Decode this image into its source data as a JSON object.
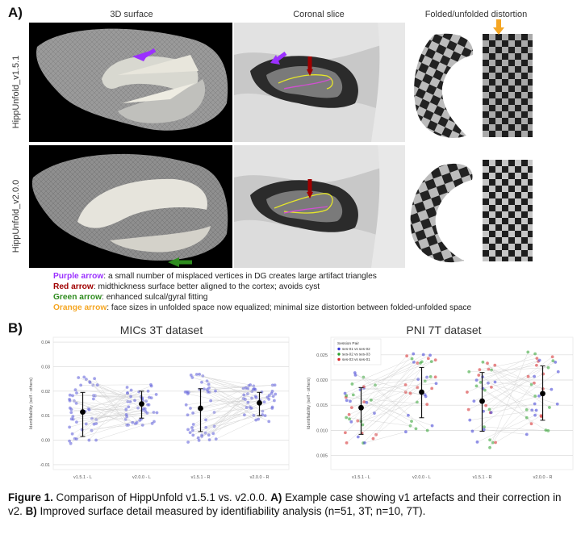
{
  "panel_a": {
    "label": "A)",
    "columns": [
      "3D surface",
      "Coronal slice",
      "Folded/unfolded distortion"
    ],
    "rows": [
      "HippUnfold_v1.5.1",
      "HippUnfold_v2.0.0"
    ]
  },
  "legend": [
    {
      "name": "Purple arrow",
      "text": ": a small number of misplaced vertices in DG creates large artifact triangles",
      "color": "#9b30ff"
    },
    {
      "name": "Red arrow",
      "text": ": midthickness surface better aligned to the cortex; avoids cyst",
      "color": "#a00000"
    },
    {
      "name": "Green arrow",
      "text": ": enhanced sulcal/gyral fitting",
      "color": "#2e8b1e"
    },
    {
      "name": "Orange arrow",
      "text": ": face sizes in unfolded space now equalized; minimal size distortion between folded-unfolded space",
      "color": "#f5a623"
    }
  ],
  "panel_b": {
    "label": "B)"
  },
  "chart_data": [
    {
      "type": "scatter",
      "title": "MICs 3T dataset",
      "ylabel": "Identifiability (self - others)",
      "categories": [
        "v1.5.1 - L",
        "v2.0.0 - L",
        "v1.5.1 - R",
        "v2.0.0 - R"
      ],
      "yticks": [
        "-0.01",
        "0.00",
        "0.01",
        "0.02",
        "0.03",
        "0.04"
      ],
      "ylim": [
        -0.012,
        0.042
      ],
      "means": [
        0.0115,
        0.0148,
        0.013,
        0.0152
      ],
      "err_low": [
        0.0015,
        0.009,
        0.0035,
        0.01
      ],
      "err_high": [
        0.0195,
        0.02,
        0.021,
        0.0195
      ],
      "point_color": "#5b5bdb",
      "grid": true
    },
    {
      "type": "scatter",
      "title": "PNI 7T dataset",
      "ylabel": "Identifiability (self - others)",
      "categories": [
        "v1.5.1 - L",
        "v2.0.0 - L",
        "v1.5.1 - R",
        "v2.0.0 - R"
      ],
      "yticks": [
        "0.005",
        "0.010",
        "0.015",
        "0.020",
        "0.025"
      ],
      "ylim": [
        0.0022,
        0.0285
      ],
      "means": [
        0.0145,
        0.0176,
        0.0158,
        0.0173
      ],
      "err_low": [
        0.0092,
        0.0125,
        0.0098,
        0.012
      ],
      "err_high": [
        0.0185,
        0.0225,
        0.0215,
        0.0228
      ],
      "legend": {
        "title": "Session Pair",
        "placement": "top-left",
        "entries": [
          {
            "name": "ses-01 vs ses-02",
            "color": "#3a3ad6"
          },
          {
            "name": "ses-02 vs ses-03",
            "color": "#2ca02c"
          },
          {
            "name": "ses-03 vs ses-01",
            "color": "#d62728"
          }
        ]
      },
      "grid": true
    }
  ],
  "caption": {
    "label": "Figure 1.",
    "text1": " Comparison of HippUnfold v1.5.1 vs. v2.0.0. ",
    "a_label": "A)",
    "text2": " Example case showing v1 artefacts and their correction in v2. ",
    "b_label": "B)",
    "text3": " Improved surface detail measured by identifiability analysis (n=51, 3T; n=10, 7T)."
  }
}
